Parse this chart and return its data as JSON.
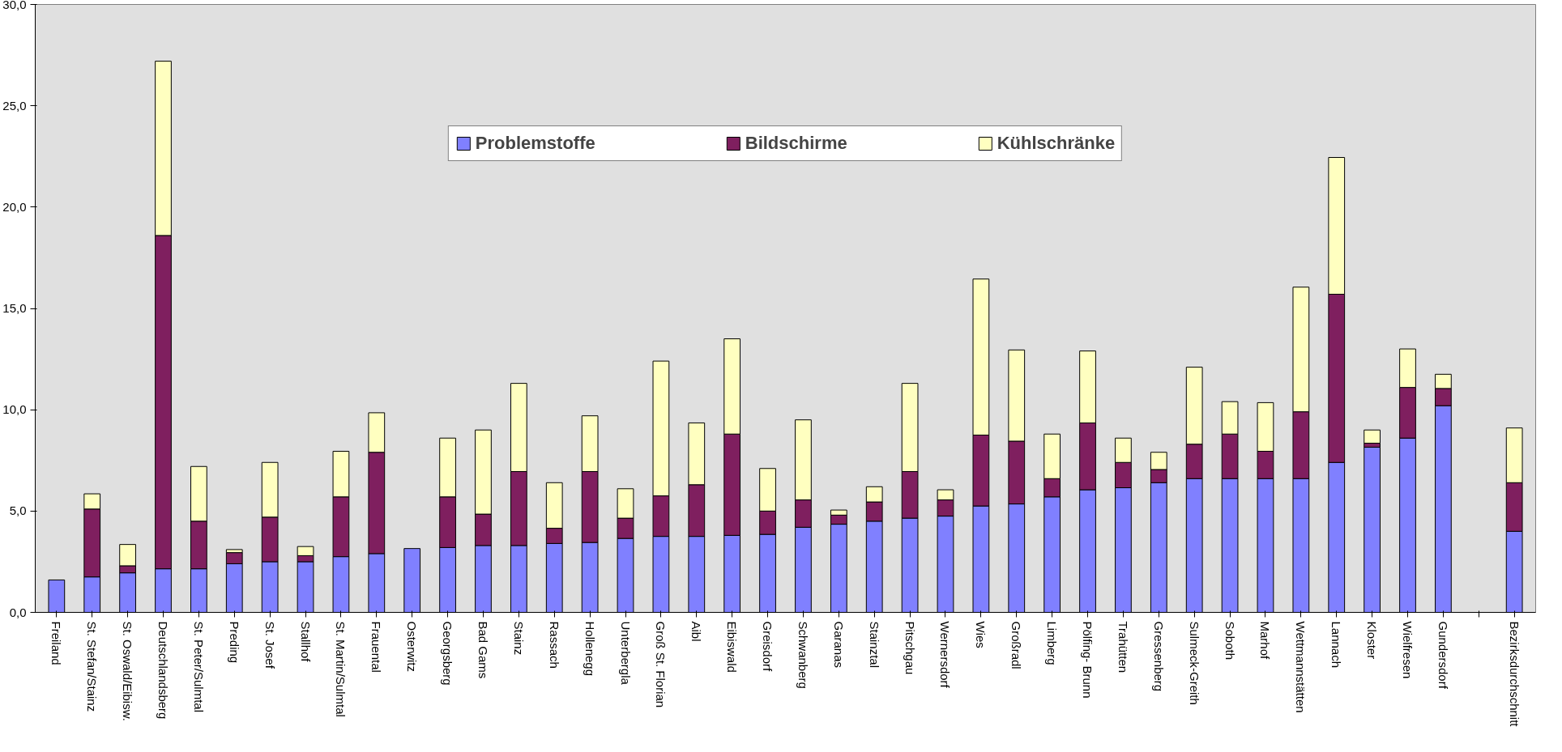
{
  "chart_data": {
    "type": "bar",
    "stacked": true,
    "legend": "top",
    "grid": false,
    "categories": [
      "Freiland",
      "St. Stefan/Stainz",
      "St. Oswald/Eibisw.",
      "Deutschlandsberg",
      "St. Peter/Sulmtal",
      "Preding",
      "St. Josef",
      "Stallhof",
      "St. Martin/Sulmtal",
      "Frauental",
      "Osterwitz",
      "Georgsberg",
      "Bad Gams",
      "Stainz",
      "Rassach",
      "Hollenegg",
      "Unterbergla",
      "Groß St. Florian",
      "Aibl",
      "Eibiswald",
      "Greisdorf",
      "Schwanberg",
      "Garanas",
      "Stainztal",
      "Pitschgau",
      "Wernersdorf",
      "Wies",
      "Großradl",
      "Limberg",
      "Pölfing- Brunn",
      "Trahütten",
      "Gressenberg",
      "Sulmeck-Greith",
      "Soboth",
      "Marhof",
      "Wettmannstätten",
      "Lannach",
      "Kloster",
      "Wielfresen",
      "Gundersdorf",
      null,
      "Bezirksdurchschnitt"
    ],
    "series": [
      {
        "name": "Problemstoffe",
        "color": "#8080ff",
        "values": [
          1.6,
          1.75,
          1.95,
          2.15,
          2.15,
          2.4,
          2.5,
          2.5,
          2.75,
          2.9,
          3.15,
          3.2,
          3.3,
          3.3,
          3.4,
          3.45,
          3.65,
          3.75,
          3.75,
          3.8,
          3.85,
          4.2,
          4.35,
          4.5,
          4.65,
          4.75,
          5.25,
          5.35,
          5.7,
          6.05,
          6.15,
          6.4,
          6.6,
          6.6,
          6.6,
          6.6,
          7.4,
          8.15,
          8.6,
          10.2,
          null,
          4.0
        ]
      },
      {
        "name": "Bildschirme",
        "color": "#7f1f5f",
        "values": [
          null,
          3.35,
          0.35,
          16.45,
          2.35,
          0.55,
          2.2,
          0.3,
          2.95,
          5.0,
          null,
          2.5,
          1.55,
          3.65,
          0.75,
          3.5,
          1.0,
          2.0,
          2.55,
          5.0,
          1.15,
          1.35,
          0.45,
          0.95,
          2.3,
          0.8,
          3.5,
          3.1,
          0.9,
          3.3,
          1.25,
          0.65,
          1.7,
          2.2,
          1.35,
          3.3,
          8.3,
          0.2,
          2.5,
          0.85,
          null,
          2.4
        ]
      },
      {
        "name": "Kühlschränke",
        "color": "#ffffc0",
        "values": [
          null,
          0.75,
          1.05,
          8.6,
          2.7,
          0.15,
          2.7,
          0.45,
          2.25,
          1.95,
          null,
          2.9,
          4.15,
          4.35,
          2.25,
          2.75,
          1.45,
          6.65,
          3.05,
          4.7,
          2.1,
          3.95,
          0.25,
          0.75,
          4.35,
          0.5,
          7.7,
          4.5,
          2.2,
          3.55,
          1.2,
          0.85,
          3.8,
          1.6,
          2.4,
          6.15,
          6.75,
          0.65,
          1.9,
          0.7,
          null,
          2.7
        ]
      }
    ],
    "ylim": [
      0,
      30
    ],
    "yticks": [
      {
        "value": 0,
        "label": "0,0"
      },
      {
        "value": 5,
        "label": "5,0"
      },
      {
        "value": 10,
        "label": "10,0"
      },
      {
        "value": 15,
        "label": "15,0"
      },
      {
        "value": 20,
        "label": "20,0"
      },
      {
        "value": 25,
        "label": "25,0"
      },
      {
        "value": 30,
        "label": "30,0"
      }
    ]
  }
}
